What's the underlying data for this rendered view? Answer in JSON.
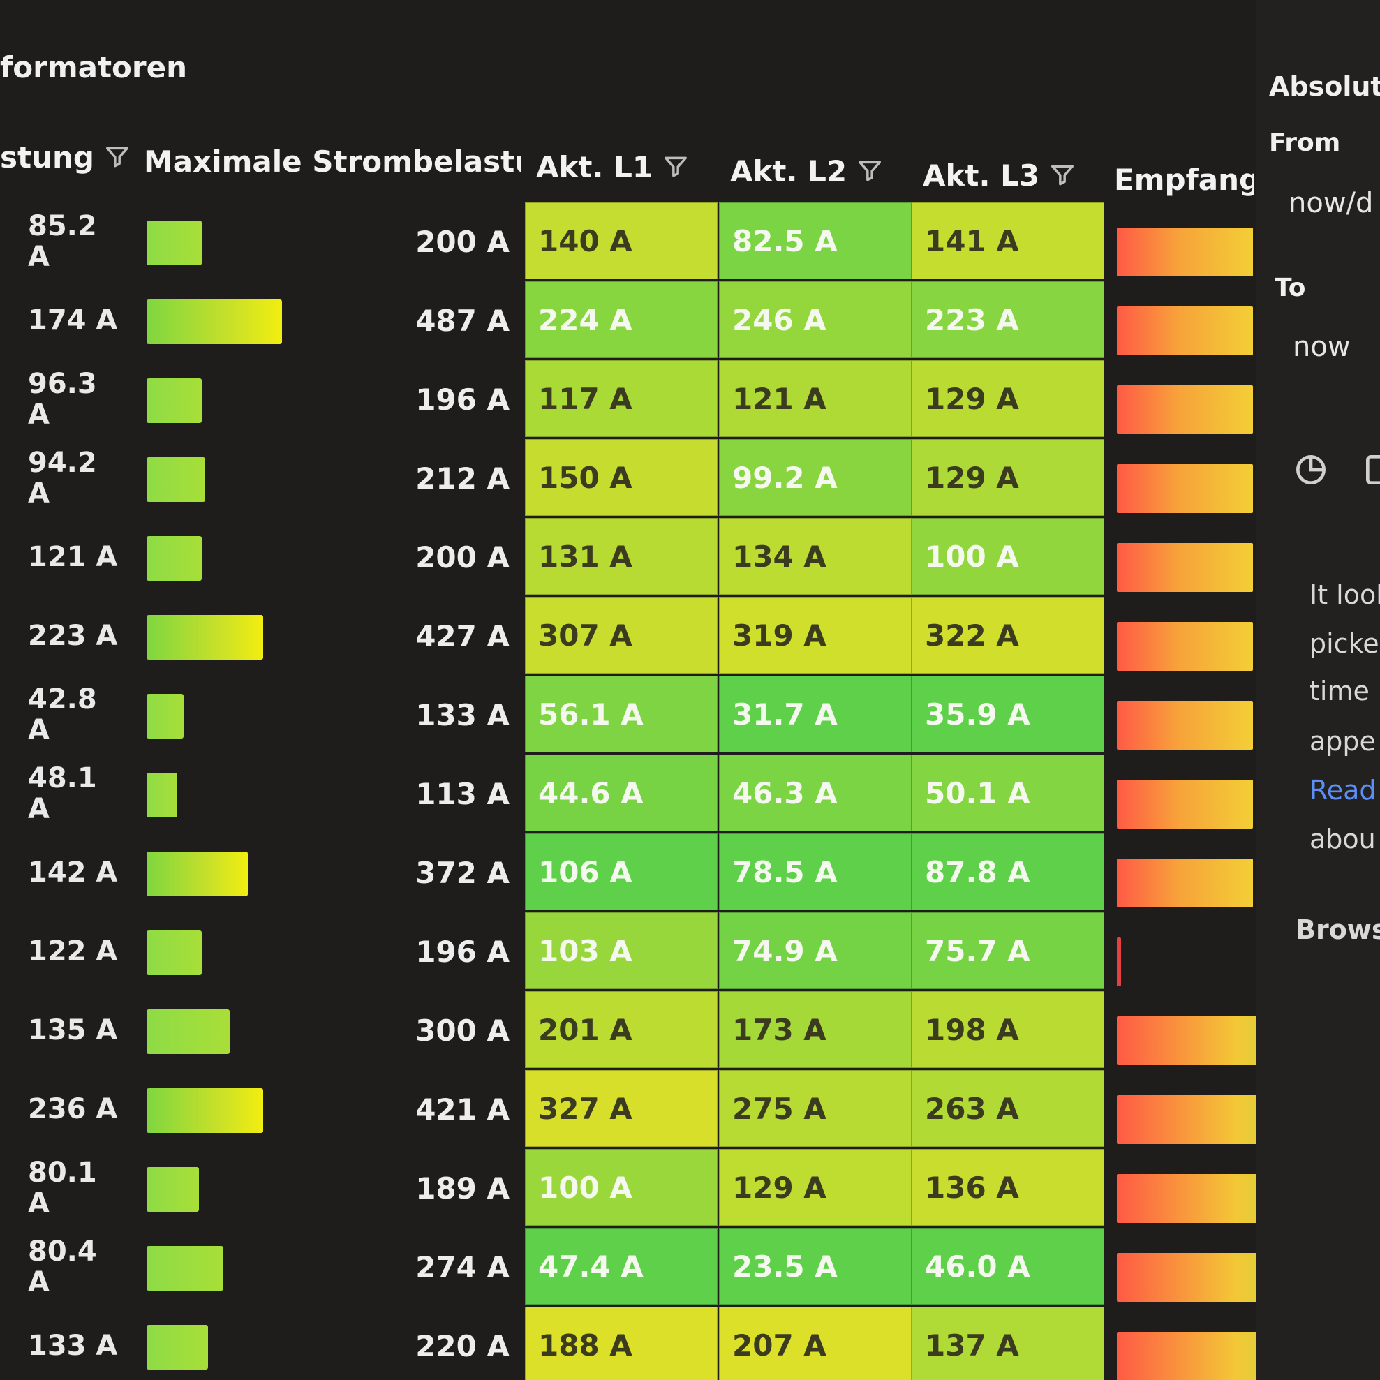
{
  "panel": {
    "title": "formatoren"
  },
  "headers": {
    "current": "stung",
    "max": "Maximale Strombelastun",
    "l1": "Akt. L1",
    "l2": "Akt. L2",
    "l3": "Akt. L3",
    "reception": "Empfangs"
  },
  "rows": [
    {
      "current": "85.2 A",
      "bar_level": 0.18,
      "max": "200 A",
      "l1": "140 A",
      "l2": "82.5 A",
      "l3": "141 A",
      "gauge": "normal"
    },
    {
      "current": "174 A",
      "bar_level": 0.44,
      "max": "487 A",
      "l1": "224 A",
      "l2": "246 A",
      "l3": "223 A",
      "gauge": "normal"
    },
    {
      "current": "96.3 A",
      "bar_level": 0.18,
      "max": "196 A",
      "l1": "117 A",
      "l2": "121 A",
      "l3": "129 A",
      "gauge": "normal"
    },
    {
      "current": "94.2 A",
      "bar_level": 0.19,
      "max": "212 A",
      "l1": "150 A",
      "l2": "99.2 A",
      "l3": "129 A",
      "gauge": "normal"
    },
    {
      "current": "121 A",
      "bar_level": 0.18,
      "max": "200 A",
      "l1": "131 A",
      "l2": "134 A",
      "l3": "100 A",
      "gauge": "normal"
    },
    {
      "current": "223 A",
      "bar_level": 0.38,
      "max": "427 A",
      "l1": "307 A",
      "l2": "319 A",
      "l3": "322 A",
      "gauge": "normal"
    },
    {
      "current": "42.8 A",
      "bar_level": 0.12,
      "max": "133 A",
      "l1": "56.1 A",
      "l2": "31.7 A",
      "l3": "35.9 A",
      "gauge": "normal"
    },
    {
      "current": "48.1 A",
      "bar_level": 0.1,
      "max": "113 A",
      "l1": "44.6 A",
      "l2": "46.3 A",
      "l3": "50.1 A",
      "gauge": "normal"
    },
    {
      "current": "142 A",
      "bar_level": 0.33,
      "max": "372 A",
      "l1": "106 A",
      "l2": "78.5 A",
      "l3": "87.8 A",
      "gauge": "normal"
    },
    {
      "current": "122 A",
      "bar_level": 0.18,
      "max": "196 A",
      "l1": "103 A",
      "l2": "74.9 A",
      "l3": "75.7 A",
      "gauge": "tiny"
    },
    {
      "current": "135 A",
      "bar_level": 0.27,
      "max": "300 A",
      "l1": "201 A",
      "l2": "173 A",
      "l3": "198 A",
      "gauge": "long"
    },
    {
      "current": "236 A",
      "bar_level": 0.38,
      "max": "421 A",
      "l1": "327 A",
      "l2": "275 A",
      "l3": "263 A",
      "gauge": "long"
    },
    {
      "current": "80.1 A",
      "bar_level": 0.17,
      "max": "189 A",
      "l1": "100 A",
      "l2": "129 A",
      "l3": "136 A",
      "gauge": "long"
    },
    {
      "current": "80.4 A",
      "bar_level": 0.25,
      "max": "274 A",
      "l1": "47.4 A",
      "l2": "23.5 A",
      "l3": "46.0 A",
      "gauge": "long"
    },
    {
      "current": "133 A",
      "bar_level": 0.2,
      "max": "220 A",
      "l1": "188 A",
      "l2": "207 A",
      "l3": "137 A",
      "gauge": "long"
    }
  ],
  "time_picker": {
    "title": "Absolute",
    "from_label": "From",
    "from_value": "now/d",
    "to_label": "To",
    "to_value": "now",
    "info_lines": [
      "It look",
      "picke",
      "time i",
      "appe"
    ],
    "read_link": "Read",
    "info_tail": "abou",
    "browse": "Brows"
  },
  "colors": {
    "green": "#5fd04a",
    "yellow": "#e3e029",
    "orange": "#ff5a45"
  }
}
